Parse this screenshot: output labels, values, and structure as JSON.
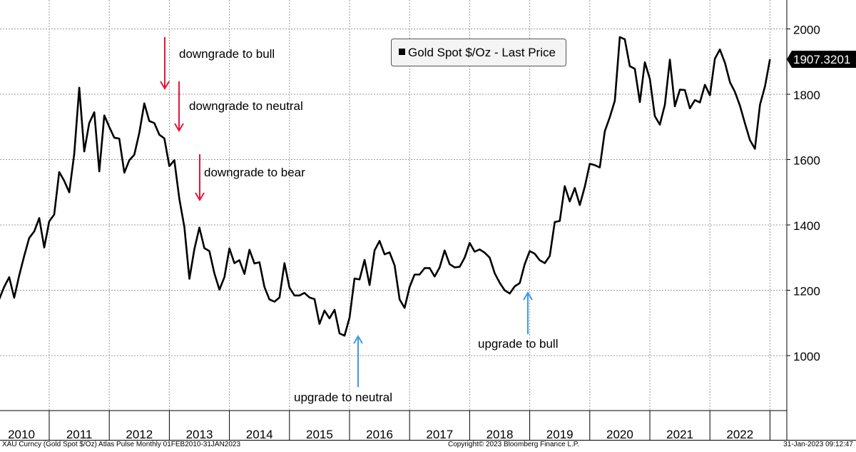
{
  "chart_data": {
    "type": "line",
    "title": "",
    "xlabel": "",
    "ylabel": "",
    "ylim": [
      850,
      2100
    ],
    "y_ticks": [
      1000,
      1200,
      1400,
      1600,
      1800,
      2000
    ],
    "x_tick_labels": [
      "2010",
      "2011",
      "2012",
      "2013",
      "2014",
      "2015",
      "2016",
      "2017",
      "2018",
      "2019",
      "2020",
      "2021",
      "2022"
    ],
    "grid": true,
    "legend": {
      "placement": "top-center",
      "label": "Gold Spot $/Oz - Last Price",
      "marker_color": "#000000"
    },
    "last_value_label": "1907.3201",
    "series": [
      {
        "name": "Gold Spot $/Oz - Last Price",
        "color": "#000000",
        "x_start": "2010-01",
        "frequency": "monthly",
        "values": [
          1118,
          1113,
          1172,
          1210,
          1240,
          1177,
          1245,
          1305,
          1360,
          1380,
          1421,
          1331,
          1411,
          1432,
          1562,
          1535,
          1500,
          1618,
          1820,
          1625,
          1712,
          1745,
          1564,
          1735,
          1700,
          1667,
          1664,
          1560,
          1598,
          1615,
          1682,
          1772,
          1718,
          1712,
          1676,
          1665,
          1580,
          1598,
          1480,
          1393,
          1235,
          1326,
          1392,
          1329,
          1320,
          1252,
          1202,
          1240,
          1328,
          1283,
          1292,
          1250,
          1324,
          1282,
          1286,
          1210,
          1172,
          1165,
          1178,
          1283,
          1208,
          1184,
          1184,
          1192,
          1178,
          1173,
          1097,
          1138,
          1114,
          1140,
          1068,
          1061,
          1116,
          1236,
          1233,
          1293,
          1216,
          1322,
          1351,
          1310,
          1316,
          1276,
          1172,
          1146,
          1210,
          1248,
          1248,
          1268,
          1268,
          1242,
          1270,
          1322,
          1280,
          1270,
          1272,
          1300,
          1345,
          1318,
          1325,
          1315,
          1300,
          1252,
          1223,
          1200,
          1190,
          1212,
          1222,
          1280,
          1320,
          1312,
          1292,
          1283,
          1305,
          1409,
          1412,
          1519,
          1472,
          1513,
          1461,
          1517,
          1587,
          1583,
          1576,
          1687,
          1730,
          1780,
          1975,
          1968,
          1886,
          1878,
          1776,
          1898,
          1847,
          1733,
          1707,
          1768,
          1906,
          1763,
          1814,
          1813,
          1757,
          1782,
          1775,
          1829,
          1797,
          1909,
          1937,
          1896,
          1837,
          1807,
          1765,
          1711,
          1660,
          1633,
          1768,
          1824,
          1907
        ]
      }
    ],
    "annotations": [
      {
        "text": "downgrade to bull",
        "date": "2012-09",
        "direction": "down",
        "color": "#e3173a"
      },
      {
        "text": "downgrade to neutral",
        "date": "2012-11",
        "direction": "down",
        "color": "#e3173a"
      },
      {
        "text": "downgrade to bear",
        "date": "2013-04",
        "direction": "down",
        "color": "#e3173a"
      },
      {
        "text": "upgrade to neutral",
        "date": "2015-12",
        "direction": "up",
        "color": "#3a9be8"
      },
      {
        "text": "upgrade to bull",
        "date": "2018-09",
        "direction": "up",
        "color": "#3a9be8"
      }
    ]
  },
  "footer": {
    "left": "XAU Curncy (Gold Spot  $/Oz) Atlas Pulse  Monthly 01FEB2010-31JAN2023",
    "center": "Copyright© 2023 Bloomberg Finance L.P.",
    "right": "31-Jan-2023 09:12:47"
  }
}
